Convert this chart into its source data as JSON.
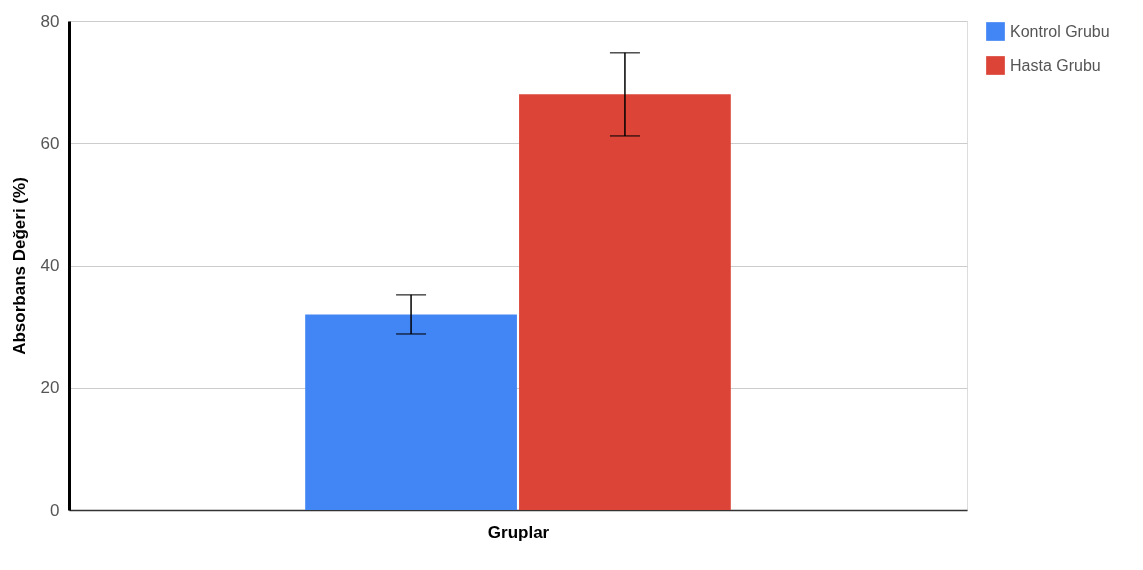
{
  "chart_data": {
    "type": "bar",
    "xlabel": "Gruplar",
    "ylabel": "Absorbans Değeri (%)",
    "categories": [
      null
    ],
    "series": [
      {
        "name": "Kontrol Grubu",
        "color": "#4285f4",
        "values": [
          32
        ],
        "errors": [
          3.2
        ]
      },
      {
        "name": "Hasta Grubu",
        "color": "#db4437",
        "values": [
          68
        ],
        "errors": [
          6.8
        ]
      }
    ],
    "ylim": [
      0,
      80
    ],
    "yticks": [
      0,
      20,
      40,
      60,
      80
    ],
    "grid": "y",
    "legend": "right"
  }
}
